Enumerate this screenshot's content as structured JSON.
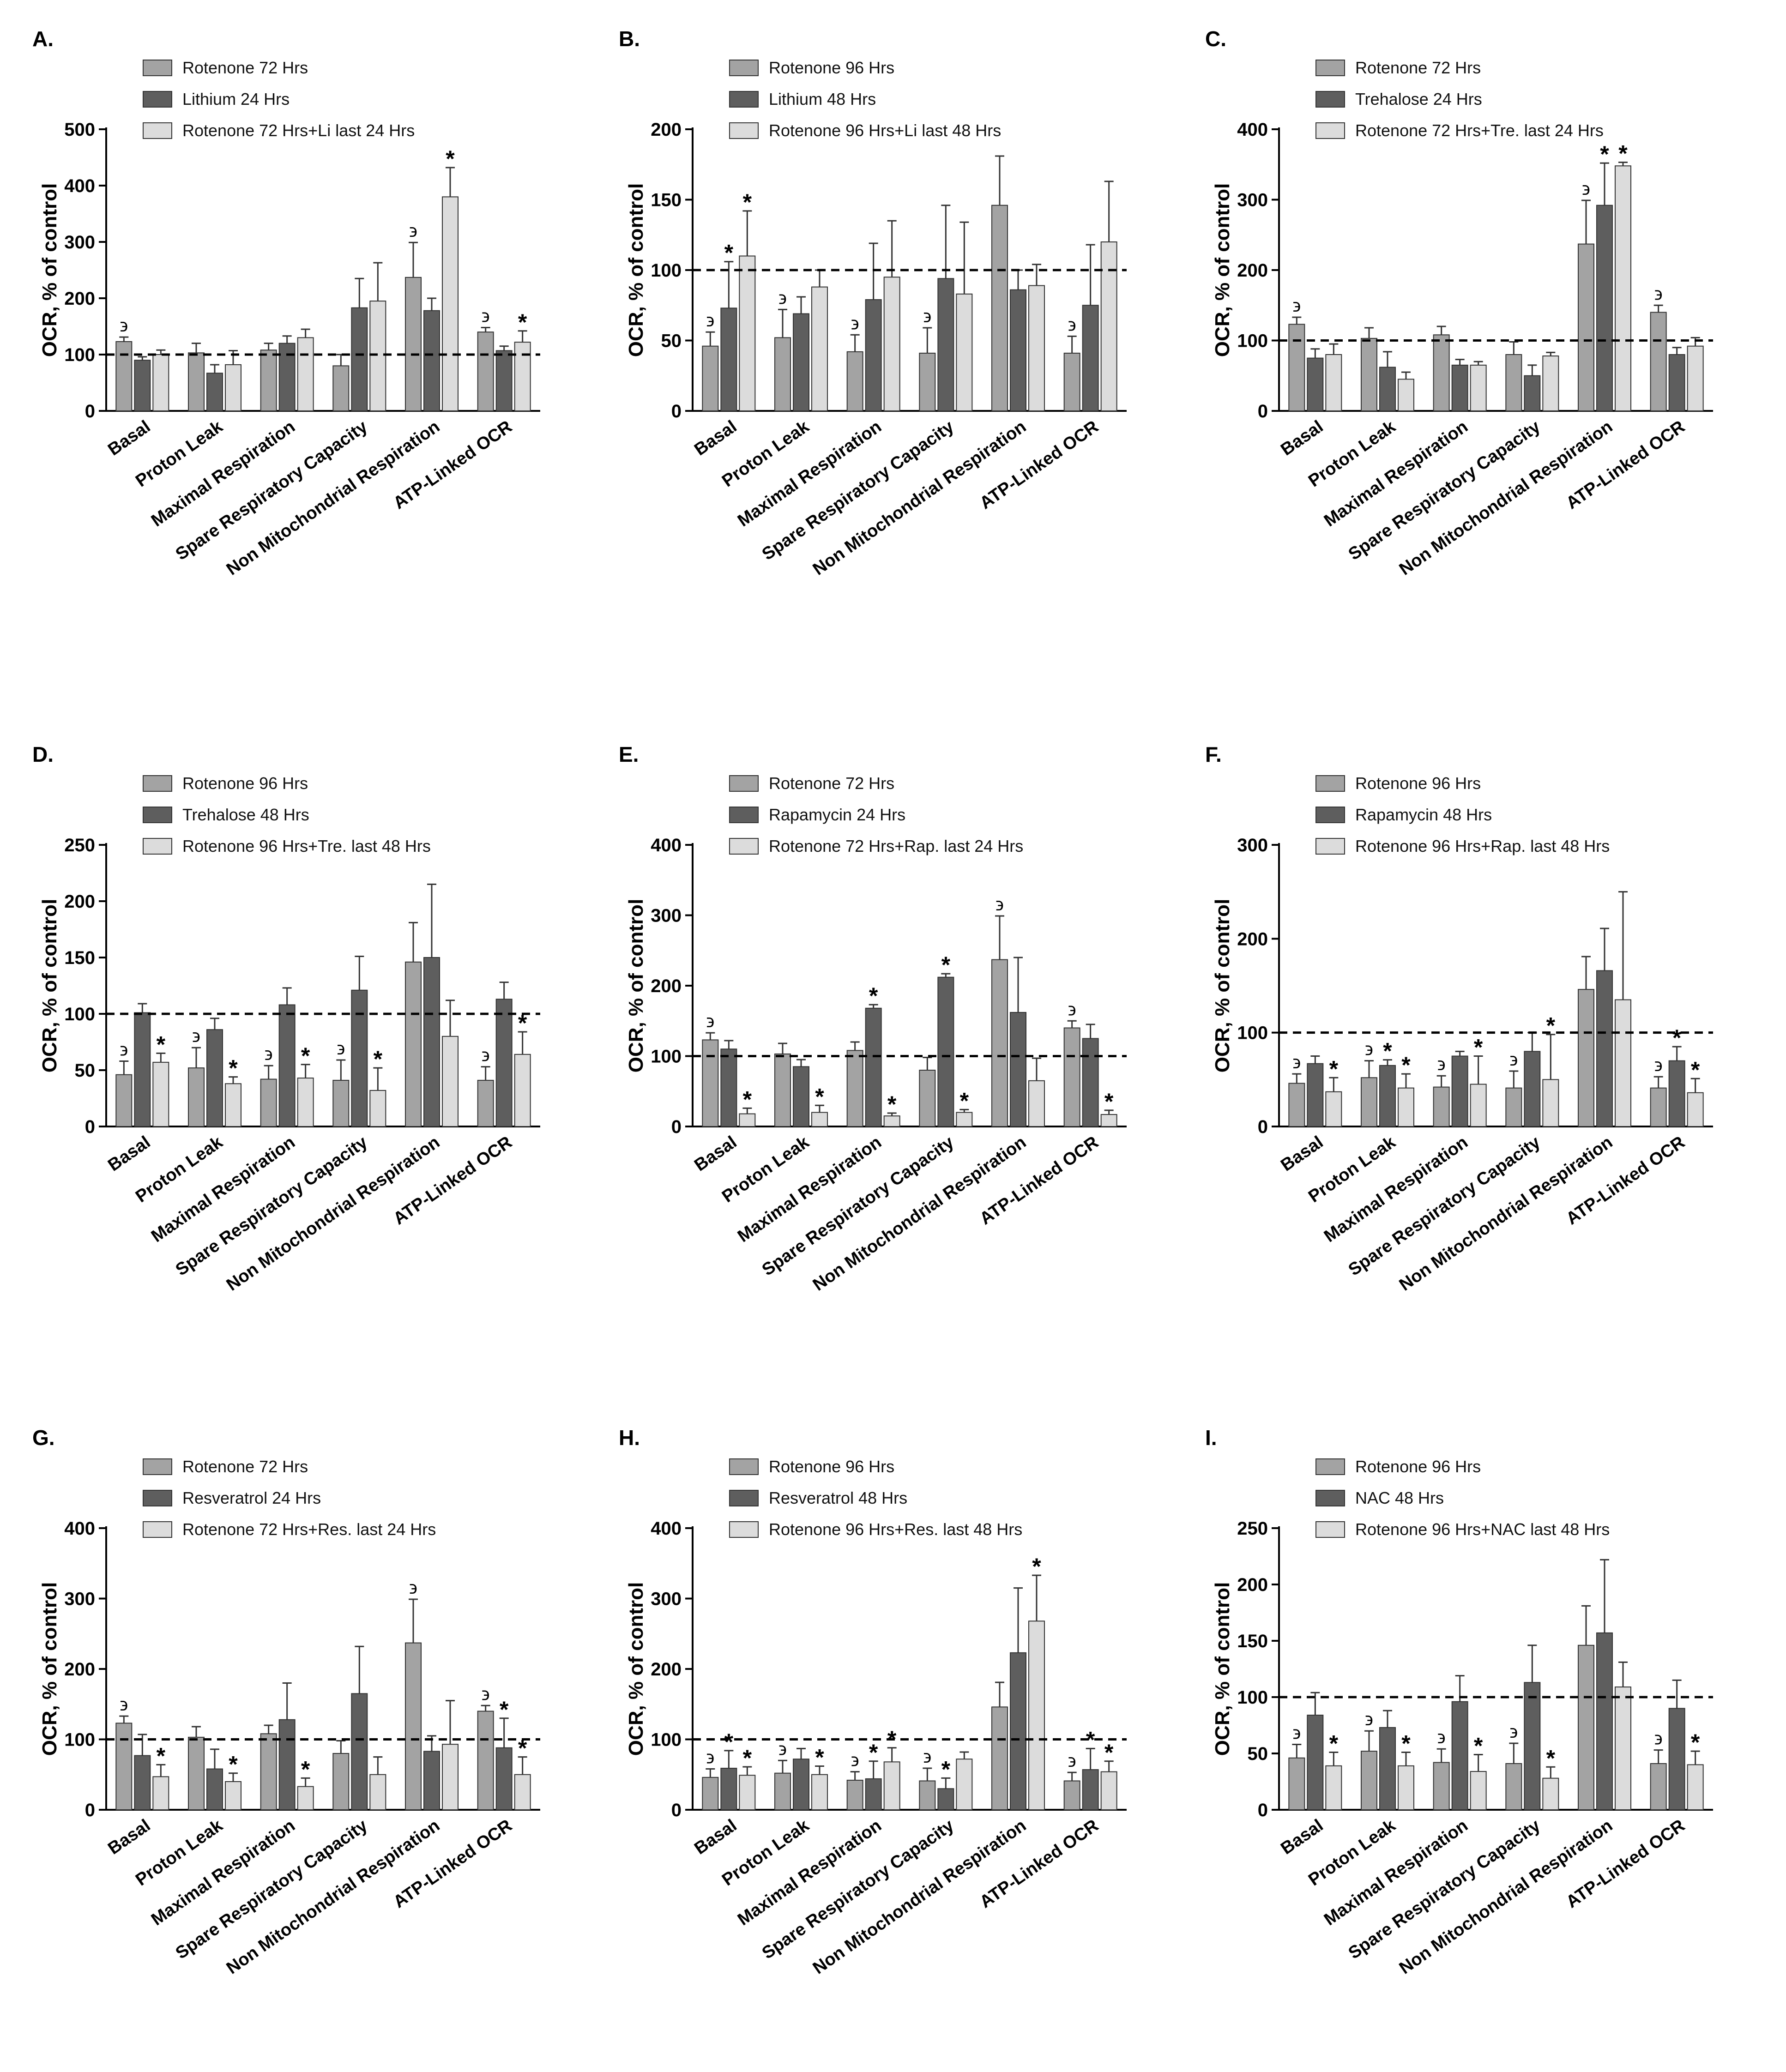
{
  "colors": {
    "s1": "#a3a3a3",
    "s2": "#5e5e5e",
    "s3": "#dcdcdc",
    "stroke": "#333333",
    "axis": "#000000"
  },
  "chart_data": [
    {
      "panel": "A.",
      "type": "bar",
      "ylabel": "OCR, % of control",
      "ylim": [
        0,
        500
      ],
      "yticks": [
        0,
        100,
        200,
        300,
        400,
        500
      ],
      "reference_line": 100,
      "categories": [
        "Basal",
        "Proton Leak",
        "Maximal Respiration",
        "Spare Respiratory Capacity",
        "Non Mitochondrial Respiration",
        "ATP-Linked OCR"
      ],
      "series": [
        {
          "name": "Rotenone 72 Hrs",
          "values": [
            123,
            103,
            108,
            80,
            237,
            140
          ],
          "errors": [
            8,
            17,
            12,
            20,
            62,
            8
          ],
          "marks": [
            "϶",
            "",
            "",
            "",
            "϶",
            "϶"
          ]
        },
        {
          "name": "Lithium 24 Hrs",
          "values": [
            90,
            67,
            120,
            183,
            178,
            107
          ],
          "errors": [
            6,
            15,
            13,
            52,
            22,
            8
          ],
          "marks": [
            "",
            "",
            "",
            "",
            "",
            ""
          ]
        },
        {
          "name": "Rotenone 72 Hrs+Li last 24 Hrs",
          "values": [
            100,
            82,
            130,
            195,
            380,
            122
          ],
          "errors": [
            8,
            25,
            15,
            68,
            52,
            20
          ],
          "marks": [
            "",
            "",
            "",
            "",
            "*",
            "*"
          ]
        }
      ]
    },
    {
      "panel": "B.",
      "type": "bar",
      "ylabel": "OCR, % of control",
      "ylim": [
        0,
        200
      ],
      "yticks": [
        0,
        50,
        100,
        150,
        200
      ],
      "reference_line": 100,
      "categories": [
        "Basal",
        "Proton Leak",
        "Maximal Respiration",
        "Spare Respiratory Capacity",
        "Non Mitochondrial Respiration",
        "ATP-Linked OCR"
      ],
      "series": [
        {
          "name": "Rotenone 96 Hrs",
          "values": [
            46,
            52,
            42,
            41,
            146,
            41
          ],
          "errors": [
            10,
            20,
            12,
            18,
            35,
            12
          ],
          "marks": [
            "϶",
            "϶",
            "϶",
            "϶",
            "",
            "϶"
          ]
        },
        {
          "name": "Lithium 48 Hrs",
          "values": [
            73,
            69,
            79,
            94,
            86,
            75
          ],
          "errors": [
            33,
            12,
            40,
            52,
            14,
            43
          ],
          "marks": [
            "*",
            "",
            "",
            "",
            "",
            ""
          ]
        },
        {
          "name": "Rotenone 96 Hrs+Li last 48 Hrs",
          "values": [
            110,
            88,
            95,
            83,
            89,
            120
          ],
          "errors": [
            32,
            12,
            40,
            51,
            15,
            43
          ],
          "marks": [
            "*",
            "",
            "",
            "",
            "",
            ""
          ]
        }
      ]
    },
    {
      "panel": "C.",
      "type": "bar",
      "ylabel": "OCR, % of control",
      "ylim": [
        0,
        400
      ],
      "yticks": [
        0,
        100,
        200,
        300,
        400
      ],
      "reference_line": 100,
      "categories": [
        "Basal",
        "Proton Leak",
        "Maximal Respiration",
        "Spare Respiratory Capacity",
        "Non Mitochondrial Respiration",
        "ATP-Linked OCR"
      ],
      "series": [
        {
          "name": "Rotenone 72 Hrs",
          "values": [
            123,
            103,
            108,
            80,
            237,
            140
          ],
          "errors": [
            10,
            15,
            12,
            18,
            62,
            10
          ],
          "marks": [
            "϶",
            "",
            "",
            "",
            "϶",
            "϶"
          ]
        },
        {
          "name": "Trehalose 24 Hrs",
          "values": [
            75,
            62,
            65,
            50,
            292,
            80
          ],
          "errors": [
            13,
            22,
            8,
            15,
            60,
            10
          ],
          "marks": [
            "",
            "",
            "",
            "",
            "*",
            ""
          ]
        },
        {
          "name": "Rotenone 72 Hrs+Tre. last 24 Hrs",
          "values": [
            80,
            45,
            65,
            78,
            348,
            92
          ],
          "errors": [
            15,
            10,
            5,
            5,
            5,
            12
          ],
          "marks": [
            "",
            "",
            "",
            "",
            "*",
            ""
          ]
        }
      ]
    },
    {
      "panel": "D.",
      "type": "bar",
      "ylabel": "OCR, % of control",
      "ylim": [
        0,
        250
      ],
      "yticks": [
        0,
        50,
        100,
        150,
        200,
        250
      ],
      "reference_line": 100,
      "categories": [
        "Basal",
        "Proton Leak",
        "Maximal Respiration",
        "Spare Respiratory Capacity",
        "Non Mitochondrial Respiration",
        "ATP-Linked OCR"
      ],
      "series": [
        {
          "name": "Rotenone 96 Hrs",
          "values": [
            46,
            52,
            42,
            41,
            146,
            41
          ],
          "errors": [
            12,
            18,
            12,
            18,
            35,
            12
          ],
          "marks": [
            "϶",
            "϶",
            "϶",
            "϶",
            "",
            "϶"
          ]
        },
        {
          "name": "Trehalose 48 Hrs",
          "values": [
            101,
            86,
            108,
            121,
            150,
            113
          ],
          "errors": [
            8,
            10,
            15,
            30,
            65,
            15
          ],
          "marks": [
            "",
            "",
            "",
            "",
            "",
            ""
          ]
        },
        {
          "name": "Rotenone 96 Hrs+Tre. last 48 Hrs",
          "values": [
            57,
            38,
            43,
            32,
            80,
            64
          ],
          "errors": [
            8,
            6,
            12,
            20,
            32,
            20
          ],
          "marks": [
            "*",
            "*",
            "*",
            "*",
            "",
            "*"
          ]
        }
      ]
    },
    {
      "panel": "E.",
      "type": "bar",
      "ylabel": "OCR, % of control",
      "ylim": [
        0,
        400
      ],
      "yticks": [
        0,
        100,
        200,
        300,
        400
      ],
      "reference_line": 100,
      "categories": [
        "Basal",
        "Proton Leak",
        "Maximal Respiration",
        "Spare Respiratory Capacity",
        "Non Mitochondrial Respiration",
        "ATP-Linked OCR"
      ],
      "series": [
        {
          "name": "Rotenone 72 Hrs",
          "values": [
            123,
            103,
            108,
            80,
            237,
            140
          ],
          "errors": [
            10,
            15,
            12,
            18,
            62,
            10
          ],
          "marks": [
            "϶",
            "",
            "",
            "",
            "϶",
            "϶"
          ]
        },
        {
          "name": "Rapamycin 24 Hrs",
          "values": [
            110,
            85,
            168,
            212,
            162,
            125
          ],
          "errors": [
            12,
            10,
            5,
            5,
            78,
            20
          ],
          "marks": [
            "",
            "",
            "*",
            "*",
            "",
            ""
          ]
        },
        {
          "name": "Rotenone 72 Hrs+Rap. last 24 Hrs",
          "values": [
            18,
            20,
            15,
            20,
            65,
            17
          ],
          "errors": [
            8,
            10,
            4,
            4,
            32,
            6
          ],
          "marks": [
            "*",
            "*",
            "*",
            "*",
            "",
            "*"
          ]
        }
      ]
    },
    {
      "panel": "F.",
      "type": "bar",
      "ylabel": "OCR, % of control",
      "ylim": [
        0,
        300
      ],
      "yticks": [
        0,
        100,
        200,
        300
      ],
      "reference_line": 100,
      "categories": [
        "Basal",
        "Proton Leak",
        "Maximal Respiration",
        "Spare Respiratory Capacity",
        "Non Mitochondrial Respiration",
        "ATP-Linked OCR"
      ],
      "series": [
        {
          "name": "Rotenone 96 Hrs",
          "values": [
            46,
            52,
            42,
            41,
            146,
            41
          ],
          "errors": [
            10,
            18,
            12,
            18,
            35,
            12
          ],
          "marks": [
            "϶",
            "϶",
            "϶",
            "϶",
            "",
            "϶"
          ]
        },
        {
          "name": "Rapamycin 48 Hrs",
          "values": [
            67,
            65,
            75,
            80,
            166,
            70
          ],
          "errors": [
            8,
            6,
            5,
            20,
            45,
            15
          ],
          "marks": [
            "",
            "*",
            "",
            "",
            "",
            "*"
          ]
        },
        {
          "name": "Rotenone 96 Hrs+Rap. last 48 Hrs",
          "values": [
            37,
            41,
            45,
            50,
            135,
            36
          ],
          "errors": [
            15,
            15,
            30,
            48,
            115,
            15
          ],
          "marks": [
            "*",
            "*",
            "*",
            "*",
            "",
            "*"
          ]
        }
      ]
    },
    {
      "panel": "G.",
      "type": "bar",
      "ylabel": "OCR, % of control",
      "ylim": [
        0,
        400
      ],
      "yticks": [
        0,
        100,
        200,
        300,
        400
      ],
      "reference_line": 100,
      "categories": [
        "Basal",
        "Proton Leak",
        "Maximal Respiration",
        "Spare Respiratory Capacity",
        "Non Mitochondrial Respiration",
        "ATP-Linked OCR"
      ],
      "series": [
        {
          "name": "Rotenone 72 Hrs",
          "values": [
            123,
            103,
            108,
            80,
            237,
            140
          ],
          "errors": [
            10,
            15,
            12,
            18,
            62,
            8
          ],
          "marks": [
            "϶",
            "",
            "",
            "",
            "϶",
            "϶"
          ]
        },
        {
          "name": "Resveratrol 24 Hrs",
          "values": [
            77,
            58,
            128,
            165,
            83,
            88
          ],
          "errors": [
            30,
            28,
            52,
            67,
            22,
            42
          ],
          "marks": [
            "",
            "",
            "",
            "",
            "",
            "*"
          ]
        },
        {
          "name": "Rotenone 72 Hrs+Res. last 24 Hrs",
          "values": [
            47,
            40,
            33,
            50,
            93,
            50
          ],
          "errors": [
            17,
            12,
            12,
            25,
            62,
            25
          ],
          "marks": [
            "*",
            "*",
            "*",
            "",
            "",
            "*"
          ]
        }
      ]
    },
    {
      "panel": "H.",
      "type": "bar",
      "ylabel": "OCR, % of control",
      "ylim": [
        0,
        400
      ],
      "yticks": [
        0,
        100,
        200,
        300,
        400
      ],
      "reference_line": 100,
      "categories": [
        "Basal",
        "Proton Leak",
        "Maximal Respiration",
        "Spare Respiratory Capacity",
        "Non Mitochondrial Respiration",
        "ATP-Linked OCR"
      ],
      "series": [
        {
          "name": "Rotenone 96 Hrs",
          "values": [
            46,
            52,
            42,
            41,
            146,
            41
          ],
          "errors": [
            12,
            18,
            12,
            18,
            35,
            12
          ],
          "marks": [
            "϶",
            "϶",
            "϶",
            "϶",
            "",
            "϶"
          ]
        },
        {
          "name": "Resveratrol 48 Hrs",
          "values": [
            59,
            72,
            44,
            30,
            223,
            57
          ],
          "errors": [
            25,
            15,
            25,
            15,
            92,
            30
          ],
          "marks": [
            "*",
            "",
            "*",
            "*",
            "",
            "*"
          ]
        },
        {
          "name": "Rotenone 96 Hrs+Res. last 48 Hrs",
          "values": [
            49,
            50,
            68,
            72,
            268,
            54
          ],
          "errors": [
            12,
            12,
            20,
            10,
            65,
            15
          ],
          "marks": [
            "*",
            "*",
            "*",
            "",
            "*",
            "*"
          ]
        }
      ]
    },
    {
      "panel": "I.",
      "type": "bar",
      "ylabel": "OCR, % of control",
      "ylim": [
        0,
        250
      ],
      "yticks": [
        0,
        50,
        100,
        150,
        200,
        250
      ],
      "reference_line": 100,
      "categories": [
        "Basal",
        "Proton Leak",
        "Maximal Respiration",
        "Spare Respiratory Capacity",
        "Non Mitochondrial Respiration",
        "ATP-Linked OCR"
      ],
      "series": [
        {
          "name": "Rotenone 96 Hrs",
          "values": [
            46,
            52,
            42,
            41,
            146,
            41
          ],
          "errors": [
            12,
            18,
            12,
            18,
            35,
            12
          ],
          "marks": [
            "϶",
            "϶",
            "϶",
            "϶",
            "",
            "϶"
          ]
        },
        {
          "name": "NAC 48 Hrs",
          "values": [
            84,
            73,
            96,
            113,
            157,
            90
          ],
          "errors": [
            20,
            15,
            23,
            33,
            65,
            25
          ],
          "marks": [
            "",
            "",
            "",
            "",
            "",
            ""
          ]
        },
        {
          "name": "Rotenone 96 Hrs+NAC last 48 Hrs",
          "values": [
            39,
            39,
            34,
            28,
            109,
            40
          ],
          "errors": [
            12,
            12,
            15,
            10,
            22,
            12
          ],
          "marks": [
            "*",
            "*",
            "*",
            "*",
            "",
            "*"
          ]
        }
      ]
    }
  ]
}
